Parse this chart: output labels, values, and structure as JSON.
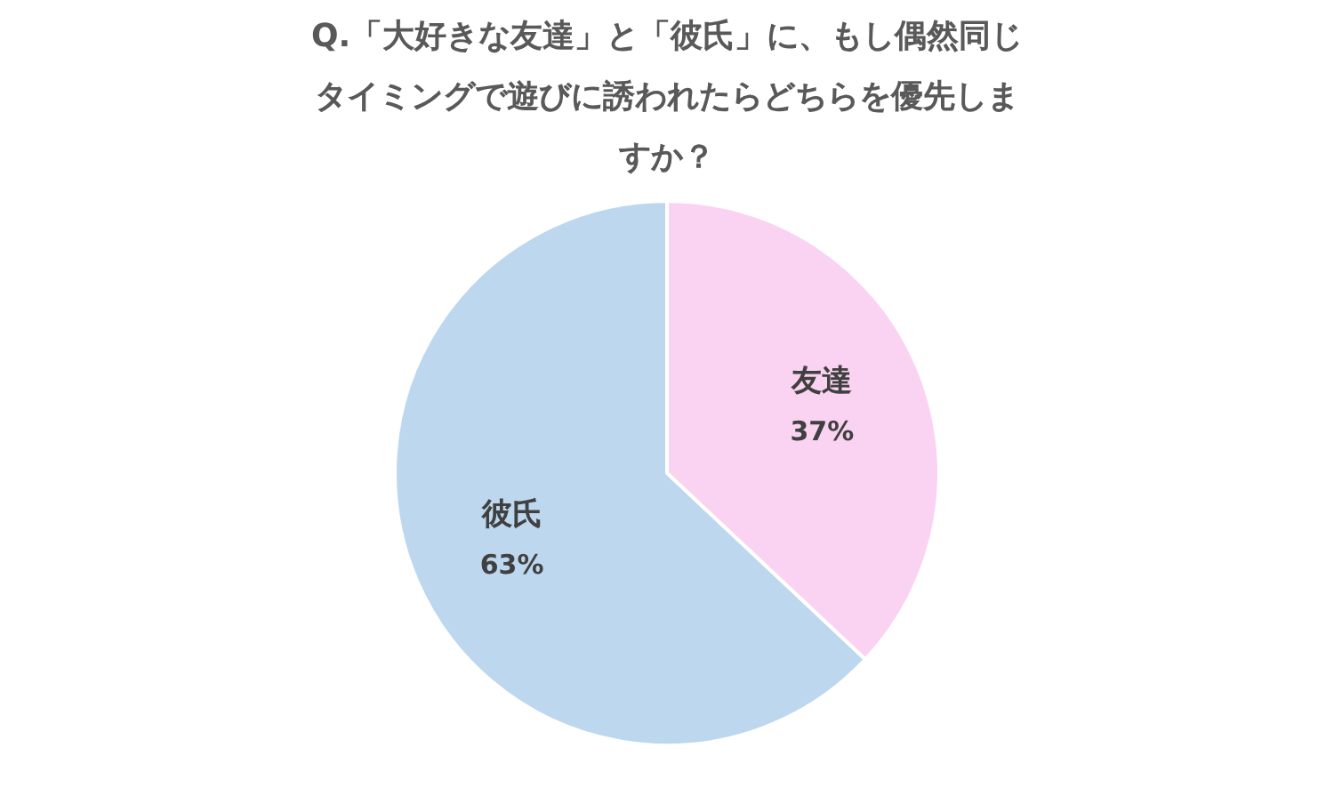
{
  "chart_data": {
    "type": "pie",
    "title": "Q.「大好きな友達」と「彼氏」に、もし偶然同じタイミングで遊びに誘われたらどちらを優先しますか？",
    "categories": [
      "友達",
      "彼氏"
    ],
    "values": [
      37,
      63
    ],
    "colors": [
      "#fbd3f2",
      "#bdd7ee"
    ],
    "value_labels": [
      "37%",
      "63%"
    ],
    "legend": false
  }
}
